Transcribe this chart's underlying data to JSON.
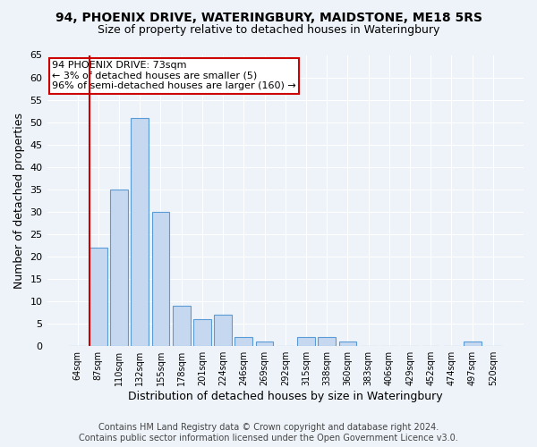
{
  "title1": "94, PHOENIX DRIVE, WATERINGBURY, MAIDSTONE, ME18 5RS",
  "title2": "Size of property relative to detached houses in Wateringbury",
  "xlabel": "Distribution of detached houses by size in Wateringbury",
  "ylabel": "Number of detached properties",
  "categories": [
    "64sqm",
    "87sqm",
    "110sqm",
    "132sqm",
    "155sqm",
    "178sqm",
    "201sqm",
    "224sqm",
    "246sqm",
    "269sqm",
    "292sqm",
    "315sqm",
    "338sqm",
    "360sqm",
    "383sqm",
    "406sqm",
    "429sqm",
    "452sqm",
    "474sqm",
    "497sqm",
    "520sqm"
  ],
  "values": [
    0,
    22,
    35,
    51,
    30,
    9,
    6,
    7,
    2,
    1,
    0,
    2,
    2,
    1,
    0,
    0,
    0,
    0,
    0,
    1,
    0
  ],
  "bar_color": "#c5d8f0",
  "bar_edge_color": "#5b9bd5",
  "highlight_color": "#cc0000",
  "ylim": [
    0,
    65
  ],
  "yticks": [
    0,
    5,
    10,
    15,
    20,
    25,
    30,
    35,
    40,
    45,
    50,
    55,
    60,
    65
  ],
  "annotation_title": "94 PHOENIX DRIVE: 73sqm",
  "annotation_line1": "← 3% of detached houses are smaller (5)",
  "annotation_line2": "96% of semi-detached houses are larger (160) →",
  "footer1": "Contains HM Land Registry data © Crown copyright and database right 2024.",
  "footer2": "Contains public sector information licensed under the Open Government Licence v3.0.",
  "bg_color": "#eef3f9",
  "plot_bg_color": "#eef3f9",
  "title1_fontsize": 10,
  "title2_fontsize": 9,
  "ylabel_fontsize": 9,
  "xlabel_fontsize": 9,
  "tick_fontsize": 8,
  "annotation_fontsize": 8,
  "footer_fontsize": 7
}
